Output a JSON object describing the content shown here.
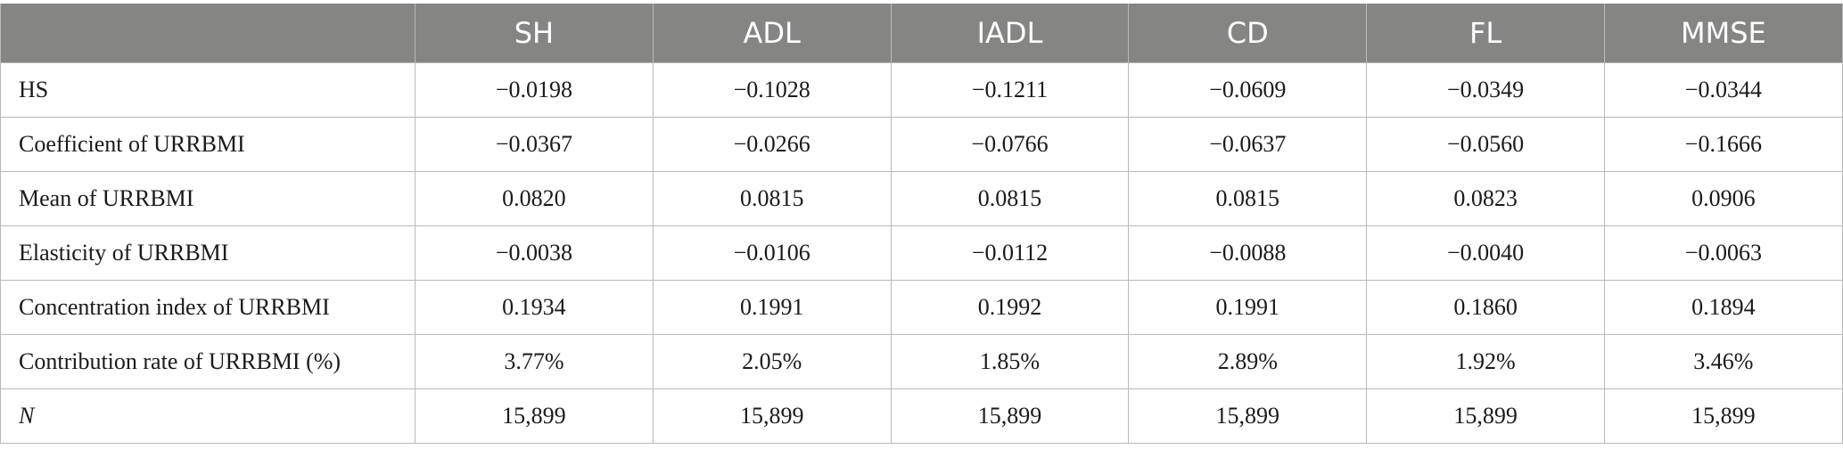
{
  "table": {
    "columns": [
      "",
      "SH",
      "ADL",
      "IADL",
      "CD",
      "FL",
      "MMSE"
    ],
    "rows": [
      {
        "label": "HS",
        "italic": false,
        "values": [
          "−0.0198",
          "−0.1028",
          "−0.1211",
          "−0.0609",
          "−0.0349",
          "−0.0344"
        ]
      },
      {
        "label": "Coefficient of URRBMI",
        "italic": false,
        "values": [
          "−0.0367",
          "−0.0266",
          "−0.0766",
          "−0.0637",
          "−0.0560",
          "−0.1666"
        ]
      },
      {
        "label": "Mean of URRBMI",
        "italic": false,
        "values": [
          "0.0820",
          "0.0815",
          "0.0815",
          "0.0815",
          "0.0823",
          "0.0906"
        ]
      },
      {
        "label": "Elasticity of URRBMI",
        "italic": false,
        "values": [
          "−0.0038",
          "−0.0106",
          "−0.0112",
          "−0.0088",
          "−0.0040",
          "−0.0063"
        ]
      },
      {
        "label": "Concentration index of URRBMI",
        "italic": false,
        "values": [
          "0.1934",
          "0.1991",
          "0.1992",
          "0.1991",
          "0.1860",
          "0.1894"
        ]
      },
      {
        "label": "Contribution rate of URRBMI (%)",
        "italic": false,
        "values": [
          "3.77%",
          "2.05%",
          "1.85%",
          "2.89%",
          "1.92%",
          "3.46%"
        ]
      },
      {
        "label": "N",
        "italic": true,
        "values": [
          "15,899",
          "15,899",
          "15,899",
          "15,899",
          "15,899",
          "15,899"
        ]
      }
    ]
  },
  "colors": {
    "header_bg": "#858684",
    "header_text": "#ffffff",
    "border": "#b9b9b9",
    "body_text": "#1a1a1a"
  }
}
